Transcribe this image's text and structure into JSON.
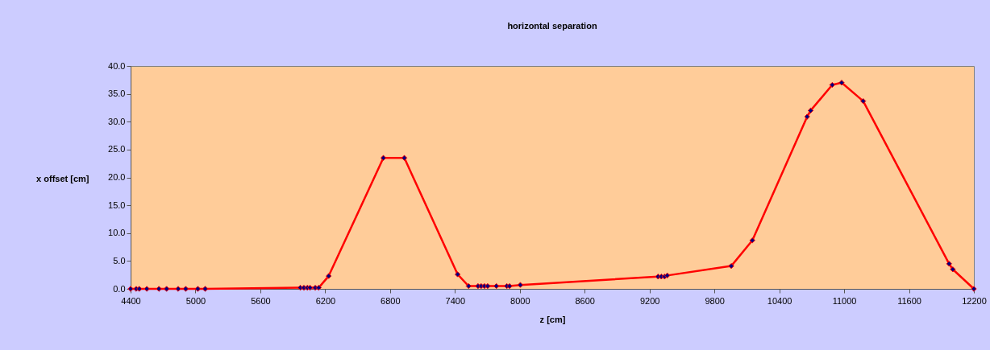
{
  "chart_data": {
    "type": "line",
    "title": "horizontal separation",
    "xlabel": "z [cm]",
    "ylabel": "x offset [cm]",
    "x": [
      4400,
      4452,
      4480,
      4550,
      4662,
      4733,
      4840,
      4910,
      5022,
      5090,
      5970,
      6003,
      6035,
      6060,
      6108,
      6140,
      6232,
      6738,
      6932,
      7425,
      7527,
      7614,
      7643,
      7673,
      7703,
      7783,
      7880,
      7905,
      8005,
      9279,
      9309,
      9339,
      9364,
      9956,
      10151,
      10658,
      10690,
      10890,
      10977,
      11176,
      11971,
      12005,
      12200
    ],
    "series": [
      {
        "color": "#ff0000",
        "values": [
          0.0,
          0.0,
          0.0,
          0.0,
          0.0,
          0.0,
          0.0,
          0.0,
          0.0,
          0.0,
          0.2,
          0.2,
          0.2,
          0.2,
          0.2,
          0.2,
          2.3,
          23.5,
          23.5,
          2.6,
          0.5,
          0.5,
          0.5,
          0.5,
          0.5,
          0.5,
          0.5,
          0.5,
          0.7,
          2.2,
          2.2,
          2.2,
          2.4,
          4.1,
          8.7,
          30.9,
          32.0,
          36.6,
          37.0,
          33.7,
          4.5,
          3.5,
          0.0
        ]
      }
    ],
    "xlim": [
      4400,
      12200
    ],
    "xticks": [
      4400,
      5000,
      5600,
      6200,
      6800,
      7400,
      8000,
      8600,
      9200,
      9800,
      10400,
      11000,
      11600,
      12200
    ],
    "ylim": [
      0,
      40
    ],
    "yticks": [
      {
        "value": 0,
        "label": "0.0"
      },
      {
        "value": 5,
        "label": "5.0"
      },
      {
        "value": 10,
        "label": "10.0"
      },
      {
        "value": 15,
        "label": "15.0"
      },
      {
        "value": 20,
        "label": "20.0"
      },
      {
        "value": 25,
        "label": "25.0"
      },
      {
        "value": 30,
        "label": "30.0"
      },
      {
        "value": 35,
        "label": "35.0"
      },
      {
        "value": 40,
        "label": "40.0"
      }
    ],
    "marker": "diamond",
    "line_style": "solid",
    "grid": false,
    "legend": false
  }
}
